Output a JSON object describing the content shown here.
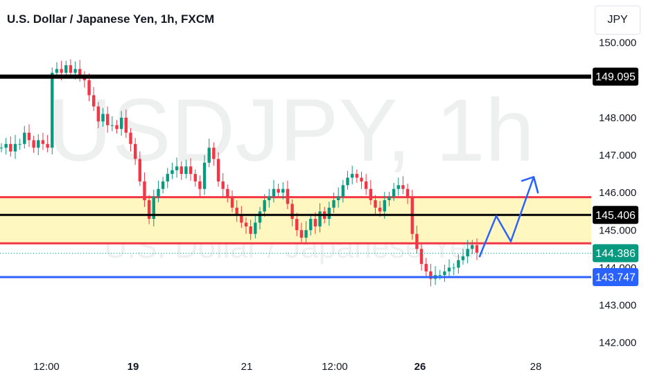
{
  "header": {
    "title": "U.S. Dollar / Japanese Yen, 1h, FXCM",
    "currency": "JPY"
  },
  "watermark": {
    "symbol": "USDJPY, 1h",
    "description": "U.S. Dollar / Japanese Yen"
  },
  "chart_data": {
    "type": "candlestick",
    "symbol": "USDJPY",
    "timeframe": "1h",
    "y_ticks": [
      "150.000",
      "148.000",
      "147.000",
      "146.000",
      "145.000",
      "144.000",
      "143.000",
      "142.000"
    ],
    "ylim": [
      141.9,
      150.05
    ],
    "x_ticks": [
      {
        "label": "12:00",
        "bold": false
      },
      {
        "label": "19",
        "bold": true
      },
      {
        "label": "21",
        "bold": false
      },
      {
        "label": "12:00",
        "bold": false
      },
      {
        "label": "26",
        "bold": true
      },
      {
        "label": "28",
        "bold": false
      }
    ],
    "close_path": [
      147.2,
      147.3,
      147.1,
      147.3,
      147.3,
      147.6,
      147.4,
      147.2,
      147.4,
      147.3,
      147.2,
      149.2,
      149.3,
      149.2,
      149.4,
      149.2,
      149.3,
      149.1,
      149.0,
      148.6,
      148.3,
      147.9,
      148.1,
      147.8,
      147.8,
      147.7,
      148.0,
      147.6,
      147.3,
      146.9,
      146.3,
      145.8,
      145.3,
      145.9,
      146.1,
      146.3,
      146.5,
      146.6,
      146.7,
      146.5,
      146.7,
      146.5,
      146.3,
      146.1,
      146.8,
      147.2,
      146.9,
      146.3,
      146.1,
      145.9,
      145.6,
      145.4,
      145.2,
      145.1,
      144.9,
      145.2,
      145.5,
      145.8,
      145.9,
      146.1,
      146.0,
      146.1,
      145.7,
      145.3,
      145.0,
      144.8,
      145.0,
      145.3,
      145.1,
      145.5,
      145.3,
      145.6,
      145.8,
      145.9,
      146.2,
      146.4,
      146.5,
      146.4,
      146.3,
      146.1,
      145.8,
      145.6,
      145.5,
      145.8,
      145.9,
      146.1,
      146.2,
      146.1,
      145.9,
      144.9,
      144.5,
      144.1,
      143.9,
      143.7,
      143.8,
      143.8,
      143.9,
      144.0,
      144.0,
      144.2,
      144.3,
      144.5,
      144.6,
      144.4
    ],
    "levels": [
      {
        "price": 149.095,
        "label": "149.095",
        "color": "#000000"
      },
      {
        "price": 145.406,
        "label": "145.406",
        "color": "#000000"
      },
      {
        "price": 143.747,
        "label": "143.747",
        "color": "#2962ff"
      }
    ],
    "zone": {
      "top": 145.88,
      "bottom": 144.65,
      "fill": "#fff6c0",
      "border": "#f23645"
    },
    "last_price": {
      "price": 144.386,
      "label": "144.386",
      "color": "#089981"
    },
    "projection_path": [
      144.3,
      145.38,
      144.7,
      146.42,
      146.0
    ],
    "colors": {
      "up": "#089981",
      "down": "#f23645",
      "projection": "#2962ff"
    }
  }
}
